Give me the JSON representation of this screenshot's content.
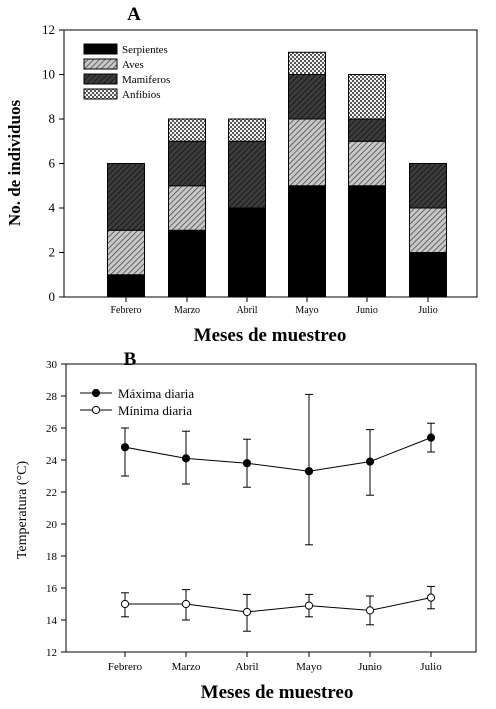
{
  "chart_data": [
    {
      "type": "bar",
      "stacked": true,
      "panel_label": "A",
      "xlabel": "Meses de muestreo",
      "ylabel": "No. de individuos",
      "ylim": [
        0,
        12
      ],
      "yticks": [
        0,
        2,
        4,
        6,
        8,
        10,
        12
      ],
      "categories": [
        "Febrero",
        "Marzo",
        "Abril",
        "Mayo",
        "Junio",
        "Julio"
      ],
      "legend_position": "top-left",
      "series": [
        {
          "name": "Serpientes",
          "values": [
            1,
            3,
            4,
            5,
            5,
            2
          ],
          "pattern": "solid-black"
        },
        {
          "name": "Aves",
          "values": [
            2,
            2,
            0,
            3,
            2,
            2
          ],
          "pattern": "diagonal-hatch"
        },
        {
          "name": "Mamiferos",
          "values": [
            3,
            2,
            3,
            2,
            1,
            2
          ],
          "pattern": "dark-crosshatch"
        },
        {
          "name": "Anfibios",
          "values": [
            0,
            1,
            1,
            1,
            2,
            0
          ],
          "pattern": "light-crosshatch"
        }
      ]
    },
    {
      "type": "line",
      "panel_label": "B",
      "xlabel": "Meses de muestreo",
      "ylabel": "Temperatura (°C)",
      "ylim": [
        12,
        30
      ],
      "yticks": [
        12,
        14,
        16,
        18,
        20,
        22,
        24,
        26,
        28,
        30
      ],
      "categories": [
        "Febrero",
        "Marzo",
        "Abril",
        "Mayo",
        "Junio",
        "Julio"
      ],
      "legend_position": "top-left",
      "series": [
        {
          "name": "Máxima diaria",
          "marker": "filled-circle",
          "values": [
            24.8,
            24.1,
            23.8,
            23.3,
            23.9,
            25.4
          ],
          "err_low": [
            23.0,
            22.5,
            22.3,
            18.7,
            21.8,
            24.5
          ],
          "err_high": [
            26.0,
            25.8,
            25.3,
            28.1,
            25.9,
            26.3
          ]
        },
        {
          "name": "Mínima diaria",
          "marker": "open-circle",
          "values": [
            15.0,
            15.0,
            14.5,
            14.9,
            14.6,
            15.4
          ],
          "err_low": [
            14.2,
            14.0,
            13.3,
            14.2,
            13.7,
            14.7
          ],
          "err_high": [
            15.7,
            15.9,
            15.6,
            15.6,
            15.5,
            16.1
          ]
        }
      ]
    }
  ]
}
